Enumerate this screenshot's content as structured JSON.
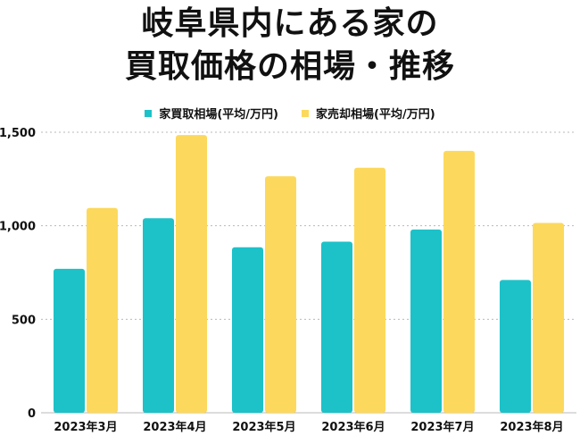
{
  "title_line1": "岐阜県内にある家の",
  "title_line2": "買取価格の相場・推移",
  "colors": {
    "buy": "#1cc2c8",
    "sell": "#fcd95c",
    "grid": "#b9b9b9"
  },
  "chart_data": {
    "type": "bar",
    "categories": [
      "2023年3月",
      "2023年4月",
      "2023年5月",
      "2023年6月",
      "2023年7月",
      "2023年8月"
    ],
    "series": [
      {
        "name": "家買取相場(平均/万円)",
        "values": [
          770,
          1040,
          885,
          915,
          980,
          710
        ]
      },
      {
        "name": "家売却相場(平均/万円)",
        "values": [
          1095,
          1485,
          1265,
          1310,
          1400,
          1015
        ]
      }
    ],
    "yticks": [
      "0",
      "500",
      "1,000",
      "1,500"
    ],
    "ylim": [
      0,
      1500
    ],
    "grid": true,
    "legend": "top-center"
  }
}
